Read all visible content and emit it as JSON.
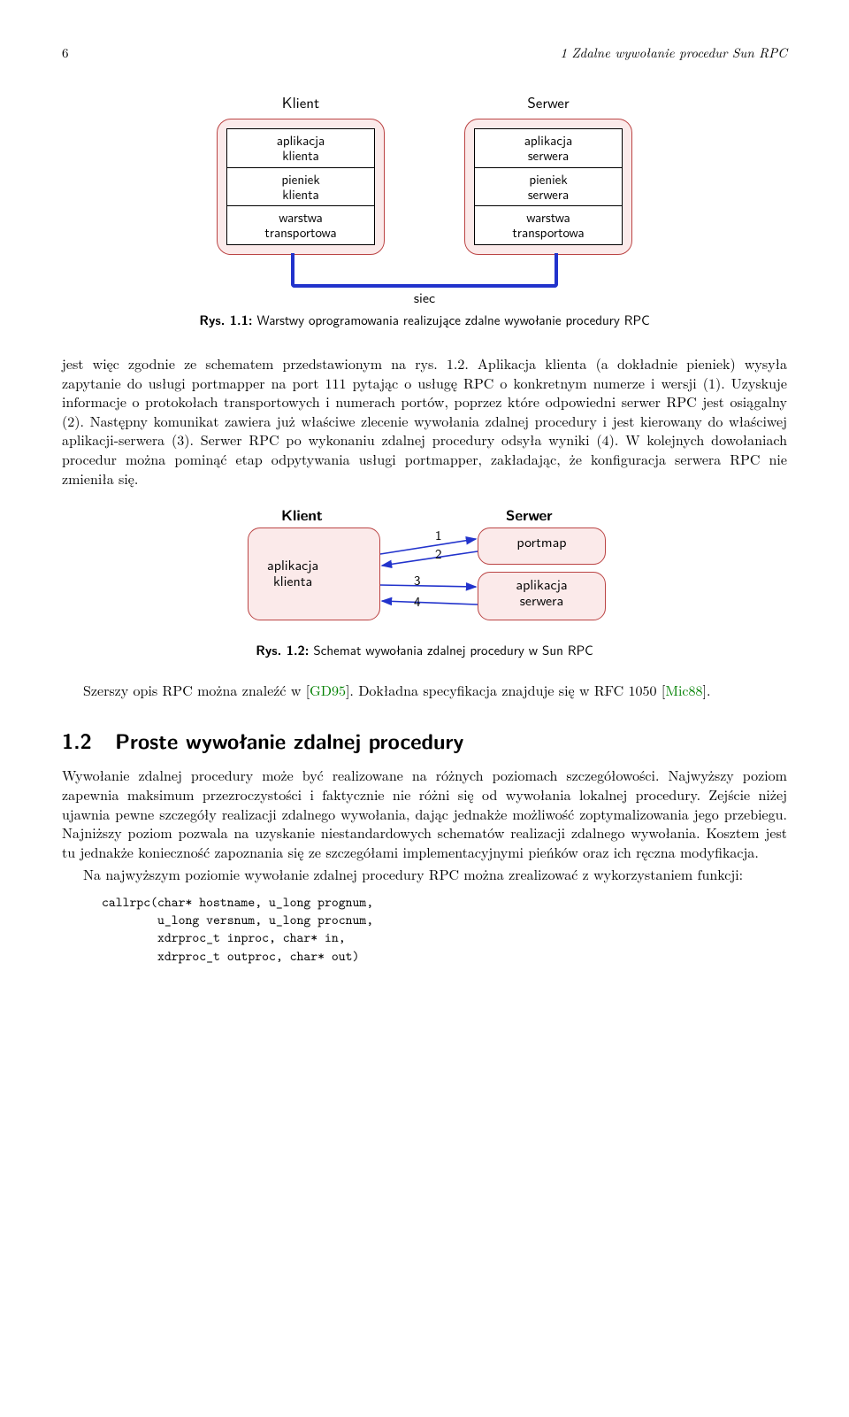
{
  "page_header": {
    "page_number": "6",
    "title": "1 Zdalne wywołanie procedur Sun RPC"
  },
  "figure1": {
    "klient_title": "Klient",
    "serwer_title": "Serwer",
    "klient_layers": [
      "aplikacja\nklienta",
      "pieniek\nklienta",
      "warstwa\ntransportowa"
    ],
    "serwer_layers": [
      "aplikacja\nserwera",
      "pieniek\nserwera",
      "warstwa\ntransportowa"
    ],
    "network_label": "siec",
    "caption_label": "Rys. 1.1:",
    "caption_text": "Warstwy oprogramowania realizujące zdalne wywołanie procedury RPC",
    "box_fill": "#fbeaea",
    "box_border": "#b44450",
    "wire_color": "#2233cc"
  },
  "paragraph1": "jest więc zgodnie ze schematem przedstawionym na rys. 1.2. Aplikacja klienta (a dokładnie pieniek) wysyła zapytanie do usługi portmapper na port 111 pytając o usługę RPC o konkretnym numerze i wersji (1). Uzyskuje informacje o protokołach transportowych i numerach portów, poprzez które odpowiedni serwer RPC jest osiągalny (2). Następny komunikat zawiera już właściwe zlecenie wywołania zdalnej procedury i jest kierowany do właściwej aplikacji-serwera (3). Serwer RPC po wykonaniu zdalnej procedury odsyła wyniki (4). W kolejnych dowołaniach procedur można pominąć etap odpytywania usługi portmapper, zakładając, że konfiguracja serwera RPC nie zmieniła się.",
  "figure2": {
    "klient_title": "Klient",
    "serwer_title": "Serwer",
    "klient_box": "aplikacja\nklienta",
    "portmap_box": "portmap",
    "serwer_box": "aplikacja\nserwera",
    "arrow_labels": [
      "1",
      "2",
      "3",
      "4"
    ],
    "arrow_color": "#2233cc",
    "caption_label": "Rys. 1.2:",
    "caption_text": "Schemat wywołania zdalnej procedury w Sun RPC"
  },
  "paragraph2_prefix": "Szerszy opis RPC można znaleźć w [",
  "paragraph2_ref1": "GD95",
  "paragraph2_mid": "]. Dokładna specyfikacja znajduje się w RFC 1050 [",
  "paragraph2_ref2": "Mic88",
  "paragraph2_suffix": "].",
  "section": {
    "number": "1.2",
    "title": "Proste wywołanie zdalnej procedury"
  },
  "paragraph3": "Wywołanie zdalnej procedury może być realizowane na różnych poziomach szczegółowości. Najwyższy poziom zapewnia maksimum przezroczystości i faktycznie nie różni się od wywołania lokalnej procedury. Zejście niżej ujawnia pewne szczegóły realizacji zdalnego wywołania, dając jednakże możliwość zoptymalizowania jego przebiegu. Najniższy poziom pozwala na uzyskanie niestandardowych schematów realizacji zdalnego wywołania. Kosztem jest tu jednakże konieczność zapoznania się ze szczegółami implementacyjnymi pieńków oraz ich ręczna modyfikacja.",
  "paragraph4": "Na najwyższym poziomie wywołanie zdalnej procedury RPC można zrealizować z wykorzystaniem funkcji:",
  "codeblock": "callrpc(char* hostname, u_long prognum,\n        u_long versnum, u_long procnum,\n        xdrproc_t inproc, char* in,\n        xdrproc_t outproc, char* out)"
}
